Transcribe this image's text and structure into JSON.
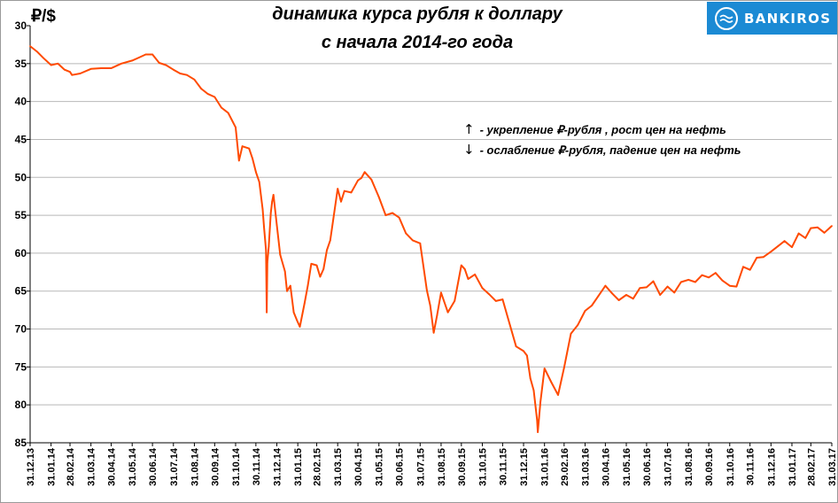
{
  "brand": {
    "name": "BANKIROS",
    "color": "#1b8ad4",
    "icon": "wave-circle-icon"
  },
  "chart_data": {
    "type": "line",
    "title_line1": "динамика курса рубля к доллару",
    "title_line2": "с начала 2014-го года",
    "ylabel": "₽/$",
    "y_axis_inverted": true,
    "ylim": [
      30,
      85
    ],
    "yticks": [
      30,
      35,
      40,
      45,
      50,
      55,
      60,
      65,
      70,
      75,
      80,
      85
    ],
    "grid": "horizontal",
    "line_color": "#ff4a00",
    "xtick_labels": [
      "31.12.13",
      "31.01.14",
      "28.02.14",
      "31.03.14",
      "30.04.14",
      "31.05.14",
      "30.06.14",
      "31.07.14",
      "31.08.14",
      "30.09.14",
      "31.10.14",
      "30.11.14",
      "31.12.14",
      "31.01.15",
      "28.02.15",
      "31.03.15",
      "30.04.15",
      "31.05.15",
      "30.06.15",
      "31.07.15",
      "31.08.15",
      "30.09.15",
      "31.10.15",
      "30.11.15",
      "31.12.15",
      "31.01.16",
      "29.02.16",
      "31.03.16",
      "30.04.16",
      "31.05.16",
      "30.06.16",
      "31.07.16",
      "31.08.16",
      "30.09.16",
      "31.10.16",
      "30.11.16",
      "31.12.16",
      "31.01.17",
      "28.02.17",
      "31.03.17"
    ],
    "annotations": [
      {
        "arrow": "↑",
        "text": "- укрепление ₽-рубля , рост цен на нефть"
      },
      {
        "arrow": "↓",
        "text": "- ослабление ₽-рубля, падение цен на нефть"
      }
    ],
    "series": [
      {
        "x": [
          "2013-12-31",
          "2014-01-10",
          "2014-01-20",
          "2014-01-31",
          "2014-02-10",
          "2014-02-20",
          "2014-02-28",
          "2014-03-03",
          "2014-03-15",
          "2014-03-31",
          "2014-04-15",
          "2014-04-30",
          "2014-05-15",
          "2014-05-31",
          "2014-06-10",
          "2014-06-20",
          "2014-06-30",
          "2014-07-10",
          "2014-07-20",
          "2014-07-31",
          "2014-08-10",
          "2014-08-20",
          "2014-08-31",
          "2014-09-10",
          "2014-09-20",
          "2014-09-30",
          "2014-10-10",
          "2014-10-20",
          "2014-10-31",
          "2014-11-05",
          "2014-11-10",
          "2014-11-20",
          "2014-11-25",
          "2014-11-30",
          "2014-12-05",
          "2014-12-10",
          "2014-12-12",
          "2014-12-15",
          "2014-12-16",
          "2014-12-17",
          "2014-12-19",
          "2014-12-22",
          "2014-12-24",
          "2014-12-26",
          "2014-12-31",
          "2015-01-05",
          "2015-01-12",
          "2015-01-15",
          "2015-01-20",
          "2015-01-25",
          "2015-01-30",
          "2015-02-03",
          "2015-02-10",
          "2015-02-15",
          "2015-02-20",
          "2015-02-28",
          "2015-03-05",
          "2015-03-10",
          "2015-03-15",
          "2015-03-20",
          "2015-03-31",
          "2015-04-05",
          "2015-04-10",
          "2015-04-20",
          "2015-04-30",
          "2015-05-05",
          "2015-05-10",
          "2015-05-20",
          "2015-05-31",
          "2015-06-10",
          "2015-06-20",
          "2015-06-30",
          "2015-07-10",
          "2015-07-20",
          "2015-07-31",
          "2015-08-10",
          "2015-08-15",
          "2015-08-20",
          "2015-08-25",
          "2015-08-31",
          "2015-09-10",
          "2015-09-20",
          "2015-09-30",
          "2015-10-05",
          "2015-10-10",
          "2015-10-20",
          "2015-10-31",
          "2015-11-10",
          "2015-11-20",
          "2015-11-30",
          "2015-12-10",
          "2015-12-20",
          "2015-12-31",
          "2016-01-05",
          "2016-01-10",
          "2016-01-15",
          "2016-01-20",
          "2016-01-21",
          "2016-01-25",
          "2016-01-31",
          "2016-02-10",
          "2016-02-20",
          "2016-02-29",
          "2016-03-10",
          "2016-03-20",
          "2016-03-31",
          "2016-04-10",
          "2016-04-20",
          "2016-04-30",
          "2016-05-10",
          "2016-05-20",
          "2016-05-31",
          "2016-06-10",
          "2016-06-20",
          "2016-06-30",
          "2016-07-10",
          "2016-07-20",
          "2016-07-31",
          "2016-08-10",
          "2016-08-20",
          "2016-08-31",
          "2016-09-10",
          "2016-09-20",
          "2016-09-30",
          "2016-10-10",
          "2016-10-20",
          "2016-10-31",
          "2016-11-10",
          "2016-11-20",
          "2016-11-30",
          "2016-12-10",
          "2016-12-20",
          "2016-12-31",
          "2017-01-10",
          "2017-01-20",
          "2017-01-31",
          "2017-02-10",
          "2017-02-20",
          "2017-02-28",
          "2017-03-10",
          "2017-03-20",
          "2017-03-31"
        ],
        "y": [
          32.7,
          33.4,
          34.3,
          35.2,
          35.0,
          35.8,
          36.1,
          36.5,
          36.3,
          35.7,
          35.6,
          35.6,
          35.0,
          34.6,
          34.2,
          33.8,
          33.8,
          34.9,
          35.2,
          35.8,
          36.3,
          36.5,
          37.1,
          38.3,
          39.0,
          39.4,
          40.8,
          41.5,
          43.4,
          47.8,
          45.9,
          46.2,
          47.5,
          49.3,
          50.6,
          54.2,
          56.5,
          59.6,
          67.8,
          61.2,
          59.1,
          54.7,
          53.2,
          52.3,
          56.3,
          60.2,
          62.4,
          65.0,
          64.3,
          67.8,
          68.9,
          69.7,
          66.6,
          64.2,
          61.4,
          61.6,
          63.1,
          62.1,
          59.6,
          58.3,
          51.5,
          53.2,
          51.8,
          52.0,
          50.4,
          50.1,
          49.3,
          50.3,
          52.6,
          55.0,
          54.7,
          55.3,
          57.4,
          58.3,
          58.7,
          64.9,
          66.9,
          70.5,
          68.2,
          65.2,
          67.8,
          66.3,
          61.6,
          62.1,
          63.4,
          62.8,
          64.6,
          65.4,
          66.3,
          66.1,
          69.2,
          72.3,
          72.9,
          73.5,
          76.5,
          78.1,
          82.0,
          83.6,
          79.6,
          75.2,
          77.0,
          78.7,
          75.1,
          70.6,
          69.5,
          67.6,
          66.9,
          65.6,
          64.3,
          65.3,
          66.2,
          65.5,
          66.0,
          64.6,
          64.5,
          63.7,
          65.5,
          64.4,
          65.2,
          63.8,
          63.5,
          63.8,
          62.9,
          63.2,
          62.6,
          63.6,
          64.3,
          64.4,
          61.8,
          62.2,
          60.6,
          60.5,
          59.8,
          59.1,
          58.4,
          59.2,
          57.4,
          58.0,
          56.7,
          56.6,
          57.3,
          56.4
        ],
        "name": ""
      }
    ]
  }
}
